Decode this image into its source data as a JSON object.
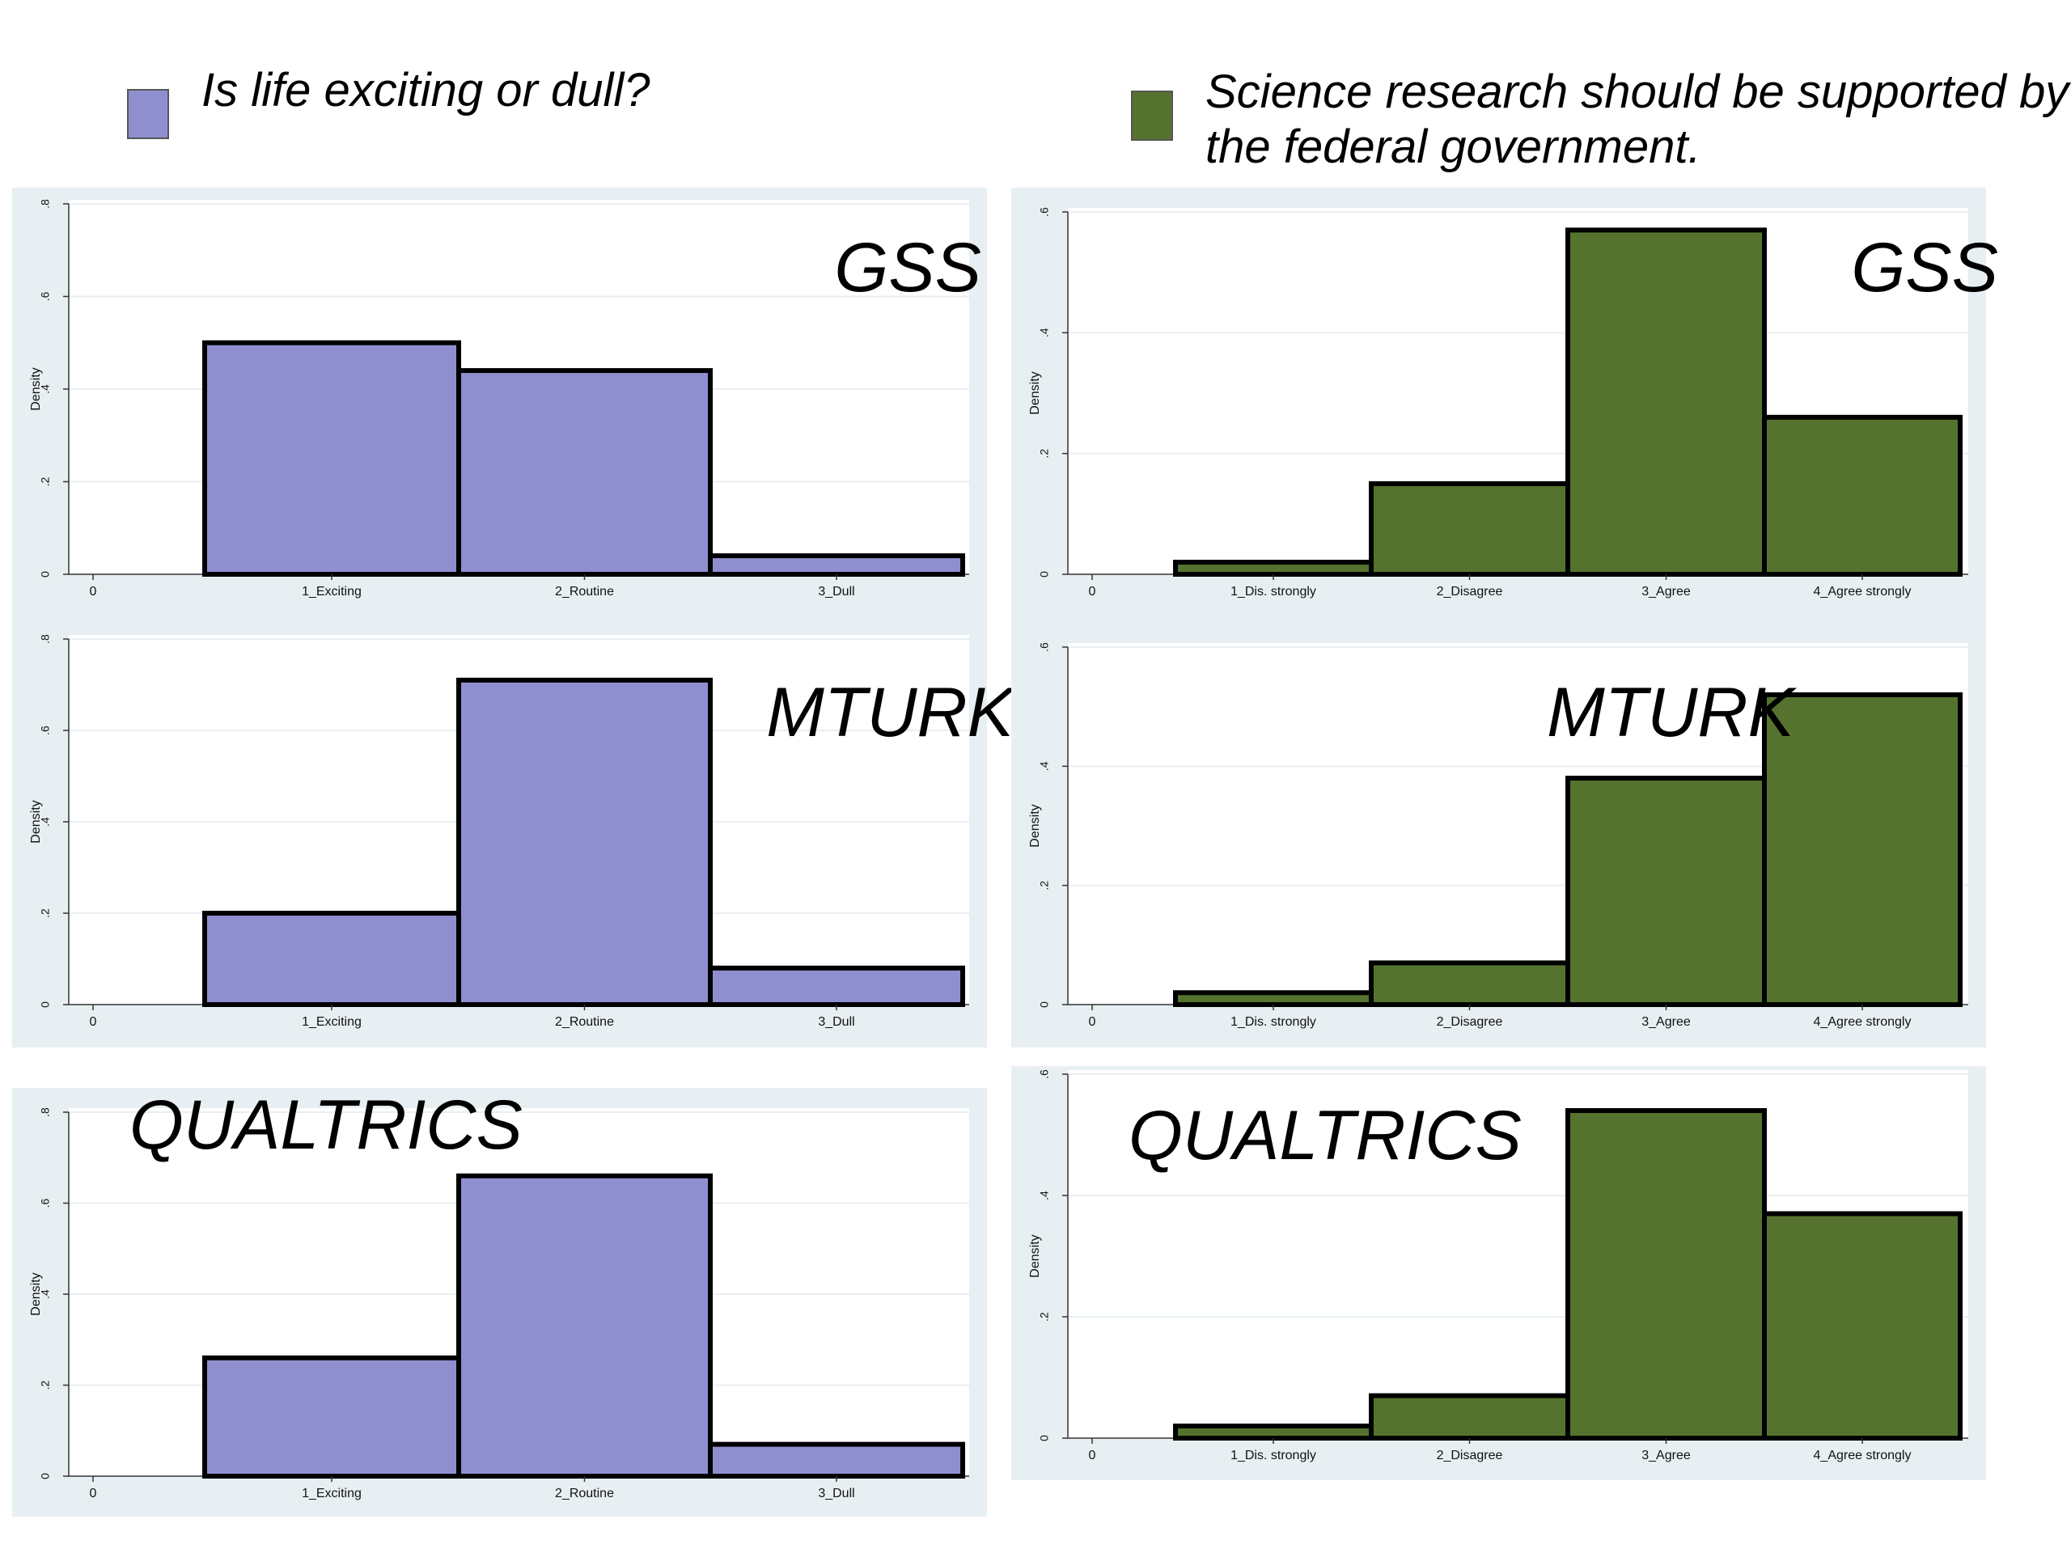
{
  "legend": {
    "left": {
      "label": "Is life exciting or dull?",
      "color": "#8f8fd0"
    },
    "right": {
      "label": "Science research should be supported by the federal government.",
      "color": "#55732e"
    }
  },
  "chart_data": [
    {
      "id": "life-gss",
      "type": "bar",
      "group": "life",
      "source_label": "GSS",
      "categories": [
        "1_Exciting",
        "2_Routine",
        "3_Dull"
      ],
      "values": [
        0.5,
        0.44,
        0.04
      ],
      "ylabel": "Density",
      "ylim": [
        0,
        0.8
      ],
      "yticks": [
        0,
        0.2,
        0.4,
        0.6,
        0.8
      ],
      "ytick_labels": [
        "0",
        ".2",
        ".4",
        ".6",
        ".8"
      ],
      "xtick_zero": "0",
      "color": "#8f8fd0",
      "label_anchor": "upper-right"
    },
    {
      "id": "life-mturk",
      "type": "bar",
      "group": "life",
      "source_label": "MTURK",
      "categories": [
        "1_Exciting",
        "2_Routine",
        "3_Dull"
      ],
      "values": [
        0.2,
        0.71,
        0.08
      ],
      "ylabel": "Density",
      "ylim": [
        0,
        0.8
      ],
      "yticks": [
        0,
        0.2,
        0.4,
        0.6,
        0.8
      ],
      "ytick_labels": [
        "0",
        ".2",
        ".4",
        ".6",
        ".8"
      ],
      "xtick_zero": "0",
      "color": "#8f8fd0",
      "label_anchor": "upper-right"
    },
    {
      "id": "life-qualtrics",
      "type": "bar",
      "group": "life",
      "source_label": "QUALTRICS",
      "categories": [
        "1_Exciting",
        "2_Routine",
        "3_Dull"
      ],
      "values": [
        0.26,
        0.66,
        0.07
      ],
      "ylabel": "Density",
      "ylim": [
        0,
        0.8
      ],
      "yticks": [
        0,
        0.2,
        0.4,
        0.6,
        0.8
      ],
      "ytick_labels": [
        "0",
        ".2",
        ".4",
        ".6",
        ".8"
      ],
      "xtick_zero": "0",
      "color": "#8f8fd0",
      "label_anchor": "upper-left"
    },
    {
      "id": "science-gss",
      "type": "bar",
      "group": "science",
      "source_label": "GSS",
      "categories": [
        "1_Dis. strongly",
        "2_Disagree",
        "3_Agree",
        "4_Agree strongly"
      ],
      "values": [
        0.02,
        0.15,
        0.57,
        0.26
      ],
      "ylabel": "Density",
      "ylim": [
        0,
        0.6
      ],
      "yticks": [
        0,
        0.2,
        0.4,
        0.6
      ],
      "ytick_labels": [
        "0",
        ".2",
        ".4",
        ".6"
      ],
      "xtick_zero": "0",
      "color": "#55732e",
      "label_anchor": "upper-right"
    },
    {
      "id": "science-mturk",
      "type": "bar",
      "group": "science",
      "source_label": "MTURK",
      "categories": [
        "1_Dis. strongly",
        "2_Disagree",
        "3_Agree",
        "4_Agree strongly"
      ],
      "values": [
        0.02,
        0.07,
        0.38,
        0.52
      ],
      "ylabel": "Density",
      "ylim": [
        0,
        0.6
      ],
      "yticks": [
        0,
        0.2,
        0.4,
        0.6
      ],
      "ytick_labels": [
        "0",
        ".2",
        ".4",
        ".6"
      ],
      "xtick_zero": "0",
      "color": "#55732e",
      "label_anchor": "upper-middle"
    },
    {
      "id": "science-qualtrics",
      "type": "bar",
      "group": "science",
      "source_label": "QUALTRICS",
      "categories": [
        "1_Dis. strongly",
        "2_Disagree",
        "3_Agree",
        "4_Agree strongly"
      ],
      "values": [
        0.02,
        0.07,
        0.54,
        0.37
      ],
      "ylabel": "Density",
      "ylim": [
        0,
        0.6
      ],
      "yticks": [
        0,
        0.2,
        0.4,
        0.6
      ],
      "ytick_labels": [
        "0",
        ".2",
        ".4",
        ".6"
      ],
      "xtick_zero": "0",
      "color": "#55732e",
      "label_anchor": "upper-left"
    }
  ]
}
